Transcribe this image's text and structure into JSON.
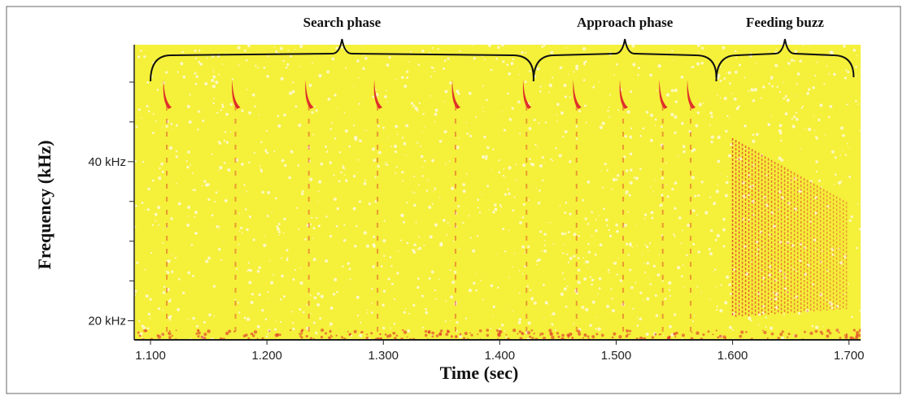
{
  "chart_data": {
    "type": "spectrogram",
    "xlabel": "Time (sec)",
    "ylabel": "Frequency (kHz)",
    "xlim": [
      1.086,
      1.71
    ],
    "ylim": [
      17.6,
      54.7
    ],
    "xticks": [
      {
        "value": 1.1,
        "label": "1.100"
      },
      {
        "value": 1.2,
        "label": "1.200"
      },
      {
        "value": 1.3,
        "label": "1.300"
      },
      {
        "value": 1.4,
        "label": "1.400"
      },
      {
        "value": 1.5,
        "label": "1.500"
      },
      {
        "value": 1.6,
        "label": "1.600"
      },
      {
        "value": 1.7,
        "label": "1.700"
      }
    ],
    "yticks": [
      {
        "value": 20,
        "label": "20 kHz"
      },
      {
        "value": 40,
        "label": "40 kHz"
      }
    ],
    "yminorticks": [
      25,
      30,
      35,
      45,
      50
    ],
    "calls": [
      1.114,
      1.173,
      1.236,
      1.295,
      1.362,
      1.423,
      1.466,
      1.506,
      1.54,
      1.564
    ],
    "buzz": [
      1.6,
      1.7
    ],
    "phases": [
      {
        "label": "Search phase",
        "start": 1.1,
        "end": 1.429
      },
      {
        "label": "Approach phase",
        "start": 1.429,
        "end": 1.586
      },
      {
        "label": "Feeding buzz",
        "start": 1.586,
        "end": 1.704
      }
    ],
    "background_color": "#f5f03a",
    "call_color": "#e0302a"
  }
}
